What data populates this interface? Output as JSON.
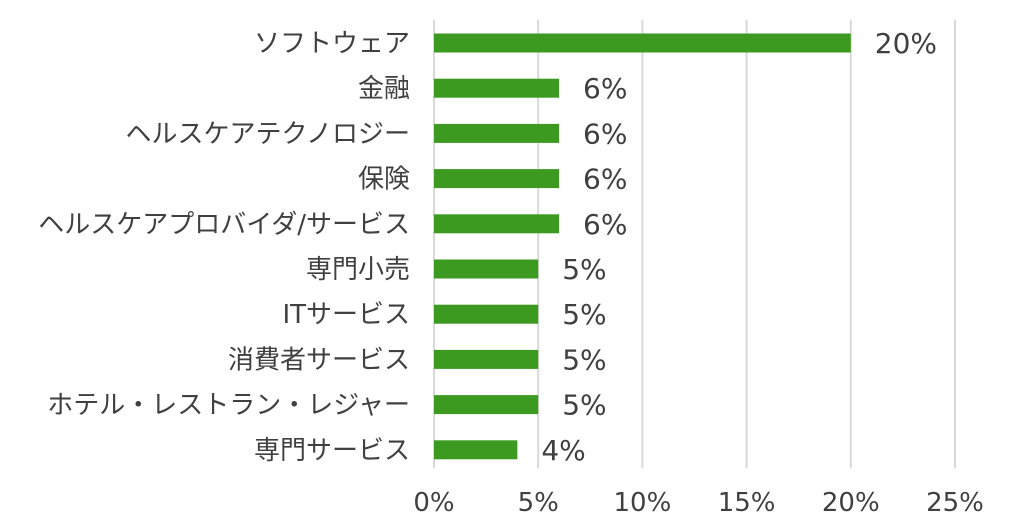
{
  "chart_data": {
    "type": "bar",
    "orientation": "horizontal",
    "categories": [
      "ソフトウェア",
      "金融",
      "ヘルスケアテクノロジー",
      "保険",
      "ヘルスケアプロバイダ/サービス",
      "専門小売",
      "ITサービス",
      "消費者サービス",
      "ホテル・レストラン・レジャー",
      "専門サービス"
    ],
    "values": [
      20,
      6,
      6,
      6,
      6,
      5,
      5,
      5,
      5,
      4
    ],
    "value_labels": [
      "20%",
      "6%",
      "6%",
      "6%",
      "6%",
      "5%",
      "5%",
      "5%",
      "5%",
      "4%"
    ],
    "xticks": [
      0,
      5,
      10,
      15,
      20,
      25
    ],
    "xtick_labels": [
      "0%",
      "5%",
      "10%",
      "15%",
      "20%",
      "25%"
    ],
    "xlim": [
      0,
      25
    ],
    "grid": "vertical",
    "legend": "none",
    "title": "",
    "xlabel": "",
    "ylabel": "",
    "colors": {
      "bar": "#3d9a20",
      "grid": "#d9d9d9",
      "text": "#404040"
    }
  }
}
